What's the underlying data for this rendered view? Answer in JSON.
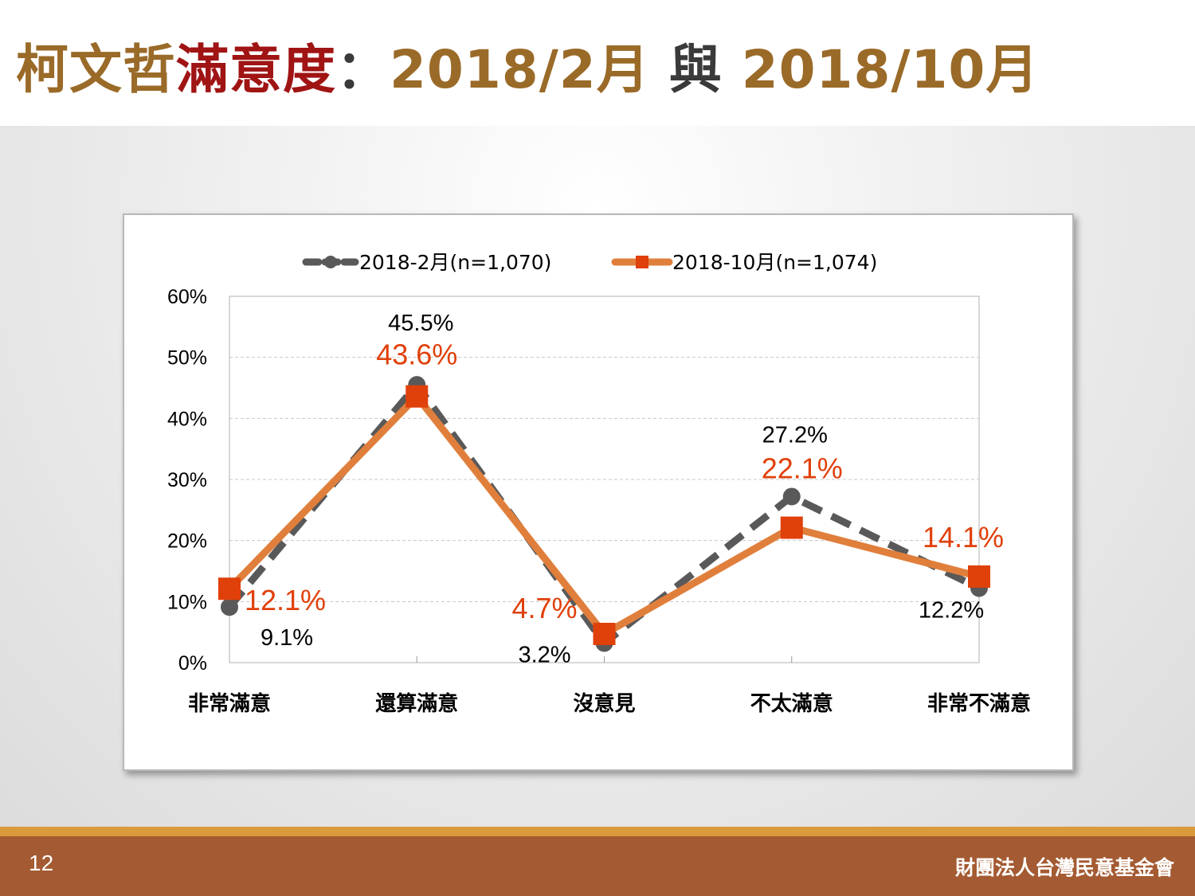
{
  "title": {
    "part1": "柯文哲",
    "part2": "滿意度",
    "part3": "：",
    "part4": "2018/2月",
    "part5": " 與 ",
    "part6": "2018/10月"
  },
  "footer": {
    "page_number": "12",
    "organization": "財團法人台灣民意基金會"
  },
  "colors": {
    "title_brown": "#9a6a28",
    "title_red": "#a01414",
    "series_feb": "#595959",
    "series_oct": "#e07f3c",
    "marker_oct": "#e0400a",
    "label_oct": "#e0400a",
    "footer_bar": "#a45a32",
    "footer_stripe": "#d99b3c"
  },
  "chart_data": {
    "type": "line",
    "categories": [
      "非常滿意",
      "還算滿意",
      "沒意見",
      "不太滿意",
      "非常不滿意"
    ],
    "series": [
      {
        "name": "2018-2月(n=1,070)",
        "values": [
          9.1,
          45.5,
          3.2,
          27.2,
          12.2
        ],
        "labels": [
          "9.1%",
          "45.5%",
          "3.2%",
          "27.2%",
          "12.2%"
        ],
        "style": "dashed",
        "marker": "circle"
      },
      {
        "name": "2018-10月(n=1,074)",
        "values": [
          12.1,
          43.6,
          4.7,
          22.1,
          14.1
        ],
        "labels": [
          "12.1%",
          "43.6%",
          "4.7%",
          "22.1%",
          "14.1%"
        ],
        "style": "solid",
        "marker": "square"
      }
    ],
    "yticks": [
      "0%",
      "10%",
      "20%",
      "30%",
      "40%",
      "50%",
      "60%"
    ],
    "ylim": [
      0,
      60
    ],
    "grid": true,
    "legend_position": "top"
  }
}
